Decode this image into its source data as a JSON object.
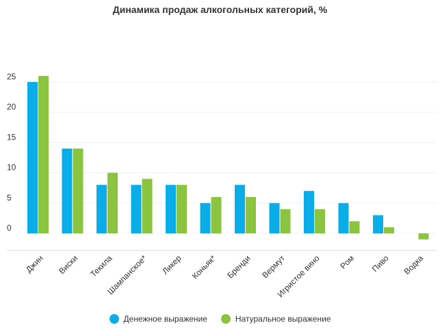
{
  "chart_data": {
    "type": "bar",
    "title": "Динамика продаж алкогольных категорий, %",
    "categories": [
      "Джин",
      "Виски",
      "Текила",
      "Шампанское*",
      "Ликер",
      "Коньяк*",
      "Бренди",
      "Вермут",
      "Игристое вино",
      "Ром",
      "Пиво",
      "Водка"
    ],
    "series": [
      {
        "name": "Денежное выражение",
        "color": "#0AADE8",
        "values": [
          25,
          14,
          8,
          8,
          8,
          5,
          8,
          5,
          7,
          5,
          3,
          null
        ]
      },
      {
        "name": "Натуральное выражение",
        "color": "#8BC53F",
        "values": [
          26,
          14,
          10,
          9,
          8,
          6,
          6,
          4,
          4,
          2,
          1,
          -1
        ]
      }
    ],
    "yticks": [
      0,
      5,
      10,
      15,
      20,
      25
    ],
    "ylim": [
      -1.5,
      27
    ],
    "grid": true,
    "legend": "bottom"
  }
}
